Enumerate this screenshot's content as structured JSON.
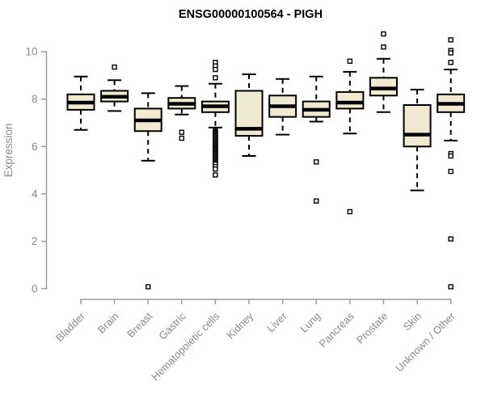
{
  "chart_data": {
    "type": "boxplot",
    "title": "ENSG00000100564 - PIGH",
    "ylabel": "Expression",
    "xlabel": "",
    "ylim": [
      0,
      10.8
    ],
    "yticks": [
      0,
      2,
      4,
      6,
      8,
      10
    ],
    "grid": false,
    "legend": "none",
    "categories": [
      "Bladder",
      "Brain",
      "Breast",
      "Gastric",
      "Hematopoietic cells",
      "Kidney",
      "Liver",
      "Lung",
      "Pancreas",
      "Prostate",
      "Skin",
      "Unknown / Other"
    ],
    "series": [
      {
        "category": "Bladder",
        "whisker_low": 6.7,
        "q1": 7.55,
        "median": 7.85,
        "q3": 8.2,
        "whisker_high": 8.95,
        "outliers": []
      },
      {
        "category": "Brain",
        "whisker_low": 7.5,
        "q1": 7.9,
        "median": 8.1,
        "q3": 8.35,
        "whisker_high": 8.8,
        "outliers": [
          9.35
        ]
      },
      {
        "category": "Breast",
        "whisker_low": 5.4,
        "q1": 6.65,
        "median": 7.1,
        "q3": 7.6,
        "whisker_high": 8.25,
        "outliers": [
          0.08
        ]
      },
      {
        "category": "Gastric",
        "whisker_low": 7.35,
        "q1": 7.6,
        "median": 7.8,
        "q3": 8.05,
        "whisker_high": 8.55,
        "outliers": [
          6.6,
          6.35
        ]
      },
      {
        "category": "Hematopoietic cells",
        "whisker_low": 6.8,
        "q1": 7.45,
        "median": 7.7,
        "q3": 7.9,
        "whisker_high": 8.65,
        "outliers": [
          9.55,
          9.4,
          9.25,
          8.9,
          6.65,
          6.6,
          6.55,
          6.5,
          6.45,
          6.4,
          6.35,
          6.3,
          6.25,
          6.2,
          6.15,
          6.1,
          6.05,
          6.0,
          5.95,
          5.9,
          5.85,
          5.8,
          5.75,
          5.7,
          5.65,
          5.6,
          5.55,
          5.5,
          5.45,
          5.4,
          5.35,
          5.3,
          5.25,
          5.15,
          5.05,
          4.8
        ]
      },
      {
        "category": "Kidney",
        "whisker_low": 5.6,
        "q1": 6.45,
        "median": 6.75,
        "q3": 8.35,
        "whisker_high": 9.05,
        "outliers": []
      },
      {
        "category": "Liver",
        "whisker_low": 6.5,
        "q1": 7.25,
        "median": 7.7,
        "q3": 8.15,
        "whisker_high": 8.85,
        "outliers": []
      },
      {
        "category": "Lung",
        "whisker_low": 7.05,
        "q1": 7.25,
        "median": 7.55,
        "q3": 7.9,
        "whisker_high": 8.95,
        "outliers": [
          5.35,
          3.7
        ]
      },
      {
        "category": "Pancreas",
        "whisker_low": 6.55,
        "q1": 7.6,
        "median": 7.85,
        "q3": 8.3,
        "whisker_high": 9.15,
        "outliers": [
          9.6,
          3.25
        ]
      },
      {
        "category": "Prostate",
        "whisker_low": 7.45,
        "q1": 8.15,
        "median": 8.45,
        "q3": 8.9,
        "whisker_high": 9.7,
        "outliers": [
          10.75,
          10.2
        ]
      },
      {
        "category": "Skin",
        "whisker_low": 4.15,
        "q1": 6.0,
        "median": 6.5,
        "q3": 7.75,
        "whisker_high": 8.4,
        "outliers": []
      },
      {
        "category": "Unknown / Other",
        "whisker_low": 6.25,
        "q1": 7.45,
        "median": 7.8,
        "q3": 8.2,
        "whisker_high": 9.25,
        "outliers": [
          10.5,
          10.05,
          9.95,
          9.55,
          5.7,
          5.6,
          4.95,
          2.1,
          0.08
        ]
      }
    ],
    "colors": {
      "box_fill": "#f0ead2",
      "box_border": "#000000",
      "median": "#000000",
      "whisker": "#000000",
      "outlier_fill": "#ffffff",
      "axis": "#9b9b9b",
      "text": "#8a8a8a",
      "title": "#000000",
      "background": "#ffffff"
    }
  }
}
